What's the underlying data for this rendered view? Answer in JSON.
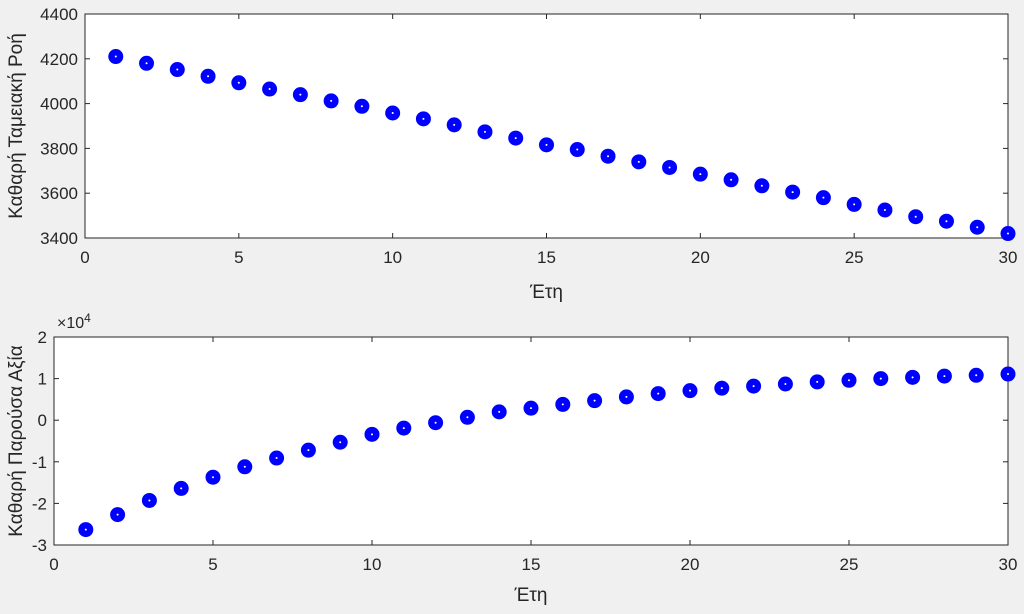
{
  "chart_data": [
    {
      "type": "scatter",
      "title": "",
      "xlabel": "Έτη",
      "ylabel": "Καθαρή Ταμειακή Ροή",
      "xlim": [
        0,
        30
      ],
      "ylim": [
        3400,
        4400
      ],
      "xticks": [
        0,
        5,
        10,
        15,
        20,
        25,
        30
      ],
      "yticks": [
        3400,
        3600,
        3800,
        4000,
        4200,
        4400
      ],
      "grid": false,
      "color": "#0000ff",
      "series": [
        {
          "x": [
            1,
            2,
            3,
            4,
            5,
            6,
            7,
            8,
            9,
            10,
            11,
            12,
            13,
            14,
            15,
            16,
            17,
            18,
            19,
            20,
            21,
            22,
            23,
            24,
            25,
            26,
            27,
            28,
            29,
            30
          ],
          "values": [
            4210,
            4180,
            4152,
            4122,
            4093,
            4065,
            4040,
            4012,
            3988,
            3958,
            3932,
            3905,
            3874,
            3846,
            3816,
            3795,
            3765,
            3740,
            3715,
            3685,
            3660,
            3633,
            3605,
            3580,
            3550,
            3525,
            3495,
            3475,
            3448,
            3420
          ]
        }
      ]
    },
    {
      "type": "scatter",
      "title": "",
      "xlabel": "Έτη",
      "ylabel": "Καθαρή Παρούσα Αξία",
      "exponent_label": "×10",
      "exponent_power": "4",
      "xlim": [
        0,
        30
      ],
      "ylim": [
        -3,
        2
      ],
      "xticks": [
        0,
        5,
        10,
        15,
        20,
        25,
        30
      ],
      "yticks": [
        -3,
        -2,
        -1,
        0,
        1,
        2
      ],
      "grid": false,
      "color": "#0000ff",
      "series": [
        {
          "x": [
            1,
            2,
            3,
            4,
            5,
            6,
            7,
            8,
            9,
            10,
            11,
            12,
            13,
            14,
            15,
            16,
            17,
            18,
            19,
            20,
            21,
            22,
            23,
            24,
            25,
            26,
            27,
            28,
            29,
            30
          ],
          "values": [
            -2.63,
            -2.27,
            -1.93,
            -1.64,
            -1.37,
            -1.12,
            -0.91,
            -0.72,
            -0.53,
            -0.34,
            -0.19,
            -0.06,
            0.07,
            0.2,
            0.29,
            0.38,
            0.47,
            0.56,
            0.64,
            0.71,
            0.77,
            0.82,
            0.87,
            0.92,
            0.96,
            1.0,
            1.03,
            1.06,
            1.08,
            1.11
          ]
        }
      ]
    }
  ]
}
